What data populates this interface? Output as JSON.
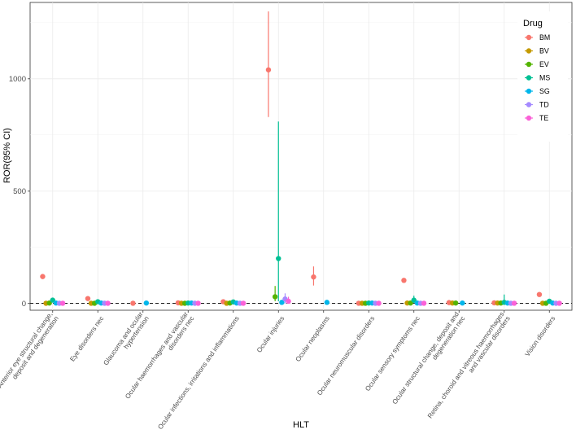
{
  "chart_data": {
    "type": "scatter",
    "subtype": "point-range (ROR with 95% CI), points dodged by drug within each category",
    "xlabel": "HLT",
    "ylabel": "ROR(95% CI)",
    "ylim": [
      -30,
      1340
    ],
    "yticks": [
      0,
      500,
      1000
    ],
    "reference_line": {
      "y": 1,
      "style": "dashed"
    },
    "grid": true,
    "legend": {
      "title": "Drug",
      "placement": "top-right (inside)"
    },
    "categories": [
      "Anterior eye structural change, deposit and degeneration",
      "Eye disorders nec",
      "Glaucoma and ocular hypertension",
      "Ocular haemorrhages and vascular disorders nec",
      "Ocular infections, irritations and inflammations",
      "Ocular   injuries",
      "Ocular neoplasms",
      "Ocular neuromuscular disorders",
      "Ocular sensory symptoms nec",
      "Ocular structural change, deposit and degeneration nec",
      "Retina, choroid and vitreous haemorrhages and vascular disorders",
      "Vision disorders"
    ],
    "category_labels": [
      [
        "Anterior eye structural change,",
        "deposit and degeneration"
      ],
      [
        "Eye disorders nec"
      ],
      [
        "Glaucoma and ocular",
        "hypertension"
      ],
      [
        "Ocular haemorrhages and vascular",
        "disorders nec"
      ],
      [
        "Ocular infections, irritations and inflammations"
      ],
      [
        "Ocular   injuries"
      ],
      [
        "Ocular neoplasms"
      ],
      [
        "Ocular neuromuscular disorders"
      ],
      [
        "Ocular sensory symptoms nec"
      ],
      [
        "Ocular structural change, deposit and",
        "degeneration nec"
      ],
      [
        "Retina, choroid and vitreous haemorrhages",
        "and vascular disorders"
      ],
      [
        "Vision disorders"
      ]
    ],
    "series": [
      {
        "name": "BM",
        "color": "#F8766D",
        "values": [
          120,
          22,
          1,
          3,
          8,
          1040,
          118,
          1,
          103,
          4,
          3,
          40
        ],
        "ci_low": [
          null,
          null,
          null,
          null,
          null,
          830,
          80,
          null,
          null,
          null,
          null,
          null
        ],
        "ci_high": [
          null,
          null,
          null,
          null,
          null,
          1300,
          165,
          null,
          null,
          null,
          null,
          null
        ]
      },
      {
        "name": "BV",
        "color": "#C49A00",
        "values": [
          1,
          1,
          null,
          1,
          1,
          null,
          null,
          1,
          2,
          2,
          2,
          1
        ],
        "ci_low": [
          null,
          null,
          null,
          null,
          null,
          null,
          null,
          null,
          null,
          null,
          null,
          null
        ],
        "ci_high": [
          null,
          null,
          null,
          null,
          null,
          null,
          null,
          null,
          null,
          null,
          null,
          null
        ]
      },
      {
        "name": "EV",
        "color": "#53B400",
        "values": [
          2,
          1,
          null,
          1,
          2,
          30,
          null,
          1,
          2,
          2,
          2,
          1
        ],
        "ci_low": [
          null,
          null,
          null,
          null,
          null,
          10,
          null,
          null,
          null,
          null,
          null,
          null
        ],
        "ci_high": [
          null,
          null,
          null,
          null,
          null,
          78,
          null,
          null,
          null,
          null,
          null,
          null
        ]
      },
      {
        "name": "MS",
        "color": "#00C094",
        "values": [
          15,
          8,
          null,
          2,
          7,
          200,
          null,
          2,
          15,
          null,
          5,
          10
        ],
        "ci_low": [
          null,
          null,
          null,
          null,
          null,
          10,
          null,
          null,
          2,
          null,
          0,
          null
        ],
        "ci_high": [
          null,
          null,
          null,
          null,
          null,
          810,
          null,
          null,
          35,
          null,
          40,
          null
        ]
      },
      {
        "name": "SG",
        "color": "#00B6EB",
        "values": [
          2,
          2,
          2,
          2,
          2,
          5,
          5,
          2,
          2,
          2,
          2,
          2
        ],
        "ci_low": [
          null,
          null,
          null,
          null,
          null,
          null,
          null,
          null,
          null,
          null,
          null,
          null
        ],
        "ci_high": [
          null,
          null,
          null,
          null,
          null,
          null,
          null,
          null,
          null,
          null,
          null,
          null
        ]
      },
      {
        "name": "TD",
        "color": "#A58AFF",
        "values": [
          1,
          1,
          null,
          1,
          1,
          20,
          null,
          1,
          1,
          null,
          1,
          1
        ],
        "ci_low": [
          null,
          null,
          null,
          null,
          null,
          0,
          null,
          null,
          null,
          null,
          null,
          null
        ],
        "ci_high": [
          null,
          null,
          null,
          null,
          null,
          45,
          null,
          null,
          null,
          null,
          null,
          null
        ]
      },
      {
        "name": "TE",
        "color": "#FB61D7",
        "values": [
          1,
          1,
          null,
          1,
          1,
          10,
          null,
          1,
          1,
          null,
          1,
          1
        ],
        "ci_low": [
          null,
          null,
          null,
          null,
          null,
          0,
          null,
          null,
          null,
          null,
          null,
          null
        ],
        "ci_high": [
          null,
          null,
          null,
          null,
          null,
          30,
          null,
          null,
          null,
          null,
          null,
          null
        ]
      }
    ]
  }
}
